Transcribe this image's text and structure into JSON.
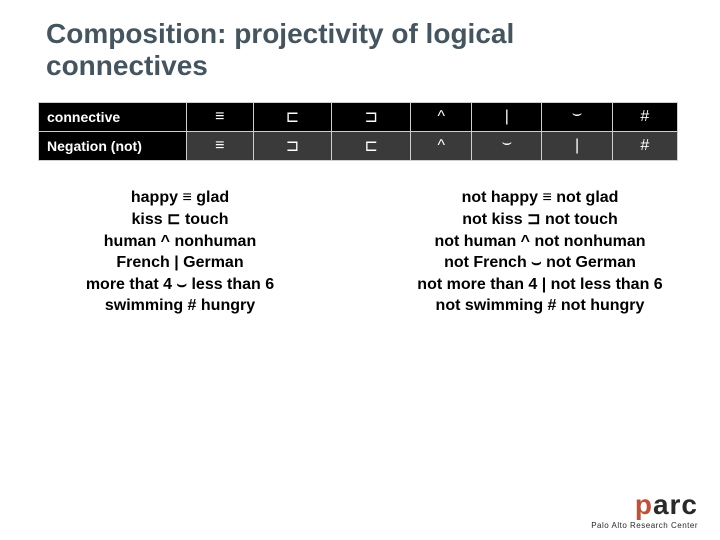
{
  "title": "Composition: projectivity of logical connectives",
  "table": {
    "rows": [
      {
        "label": "connective",
        "cells": [
          "≡",
          "⊏",
          "⊐",
          "^",
          "|",
          "⌣",
          "#"
        ]
      },
      {
        "label": "Negation (not)",
        "cells": [
          "≡",
          "⊐",
          "⊏",
          "^",
          "⌣",
          "|",
          "#"
        ]
      }
    ]
  },
  "examples": {
    "left": [
      "happy ≡ glad",
      "kiss ⊏ touch",
      "human ^ nonhuman",
      "French | German",
      "more that 4 ⌣ less than 6",
      "swimming # hungry"
    ],
    "right": [
      "not happy  ≡ not glad",
      "not kiss ⊐ not touch",
      "not human ^ not nonhuman",
      "not French ⌣ not German",
      "not more than 4 | not less than 6",
      "not swimming # not hungry"
    ]
  },
  "logo": {
    "p": "p",
    "arc": "arc",
    "sub": "Palo Alto Research Center"
  },
  "colors": {
    "title": "#455560",
    "row_conn_bg": "#000000",
    "row_neg_bg": "#3a3a3a",
    "logo_accent": "#c05038"
  }
}
